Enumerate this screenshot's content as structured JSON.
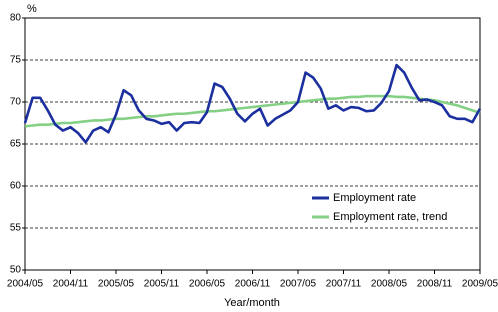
{
  "chart_data": {
    "type": "line",
    "y_label": "%",
    "x_label": "Year/month",
    "categories": [
      "2004/05",
      null,
      null,
      null,
      null,
      null,
      "2004/11",
      null,
      null,
      null,
      null,
      null,
      "2005/05",
      null,
      null,
      null,
      null,
      null,
      "2005/11",
      null,
      null,
      null,
      null,
      null,
      "2006/05",
      null,
      null,
      null,
      null,
      null,
      "2006/11",
      null,
      null,
      null,
      null,
      null,
      "2007/05",
      null,
      null,
      null,
      null,
      null,
      "2007/11",
      null,
      null,
      null,
      null,
      null,
      "2008/05",
      null,
      null,
      null,
      null,
      null,
      "2008/11",
      null,
      null,
      null,
      null,
      null,
      "2009/05"
    ],
    "series": [
      {
        "name": "Employment rate",
        "color": "#1c2f9e",
        "values": [
          67.5,
          70.5,
          70.5,
          69,
          67.3,
          66.6,
          67,
          66.3,
          65.2,
          66.6,
          67,
          66.4,
          68.5,
          71.4,
          70.8,
          69,
          68,
          67.8,
          67.4,
          67.6,
          66.6,
          67.5,
          67.6,
          67.5,
          68.8,
          72.2,
          71.8,
          70.4,
          68.6,
          67.7,
          68.6,
          69.2,
          67.2,
          68,
          68.5,
          69,
          70,
          73.5,
          72.9,
          71.6,
          69.2,
          69.6,
          69,
          69.4,
          69.3,
          68.9,
          69,
          69.9,
          71.3,
          74.4,
          73.5,
          71.7,
          70.2,
          70.3,
          70,
          69.6,
          68.3,
          68,
          68,
          67.6,
          69.2
        ]
      },
      {
        "name": "Employment rate, trend",
        "color": "#84d084",
        "values": [
          67.1,
          67.2,
          67.3,
          67.3,
          67.4,
          67.5,
          67.5,
          67.6,
          67.7,
          67.8,
          67.8,
          67.9,
          68.0,
          68.0,
          68.1,
          68.2,
          68.3,
          68.3,
          68.4,
          68.5,
          68.6,
          68.6,
          68.7,
          68.8,
          68.9,
          68.9,
          69.0,
          69.1,
          69.2,
          69.3,
          69.4,
          69.5,
          69.6,
          69.7,
          69.8,
          69.9,
          70.0,
          70.1,
          70.2,
          70.3,
          70.4,
          70.4,
          70.5,
          70.6,
          70.6,
          70.7,
          70.7,
          70.7,
          70.7,
          70.6,
          70.6,
          70.5,
          70.4,
          70.3,
          70.2,
          70.0,
          69.8,
          69.6,
          69.3,
          69.0,
          68.7
        ]
      }
    ],
    "ylim": [
      50,
      80
    ],
    "yticks": [
      50,
      55,
      60,
      65,
      70,
      75,
      80
    ],
    "grid": true,
    "legend": "lower right"
  }
}
